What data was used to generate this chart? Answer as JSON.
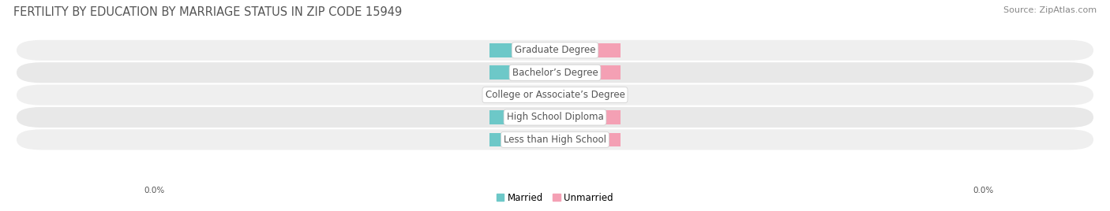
{
  "title": "FERTILITY BY EDUCATION BY MARRIAGE STATUS IN ZIP CODE 15949",
  "source": "Source: ZipAtlas.com",
  "categories": [
    "Less than High School",
    "High School Diploma",
    "College or Associate’s Degree",
    "Bachelor’s Degree",
    "Graduate Degree"
  ],
  "married_values": [
    0.0,
    0.0,
    0.0,
    0.0,
    0.0
  ],
  "unmarried_values": [
    0.0,
    0.0,
    0.0,
    0.0,
    0.0
  ],
  "married_color": "#6DC8C8",
  "unmarried_color": "#F4A0B4",
  "row_bg_even": "#EFEFEF",
  "row_bg_odd": "#E8E8E8",
  "label_color": "#555555",
  "value_color": "#FFFFFF",
  "title_color": "#555555",
  "xlim": [
    -10.0,
    10.0
  ],
  "bar_height": 0.62,
  "min_bar_width": 1.2,
  "axis_label_left": "0.0%",
  "axis_label_right": "0.0%",
  "legend_married": "Married",
  "legend_unmarried": "Unmarried",
  "background_color": "#FFFFFF",
  "title_fontsize": 10.5,
  "source_fontsize": 8,
  "category_fontsize": 8.5,
  "value_fontsize": 7.5,
  "legend_fontsize": 8.5
}
